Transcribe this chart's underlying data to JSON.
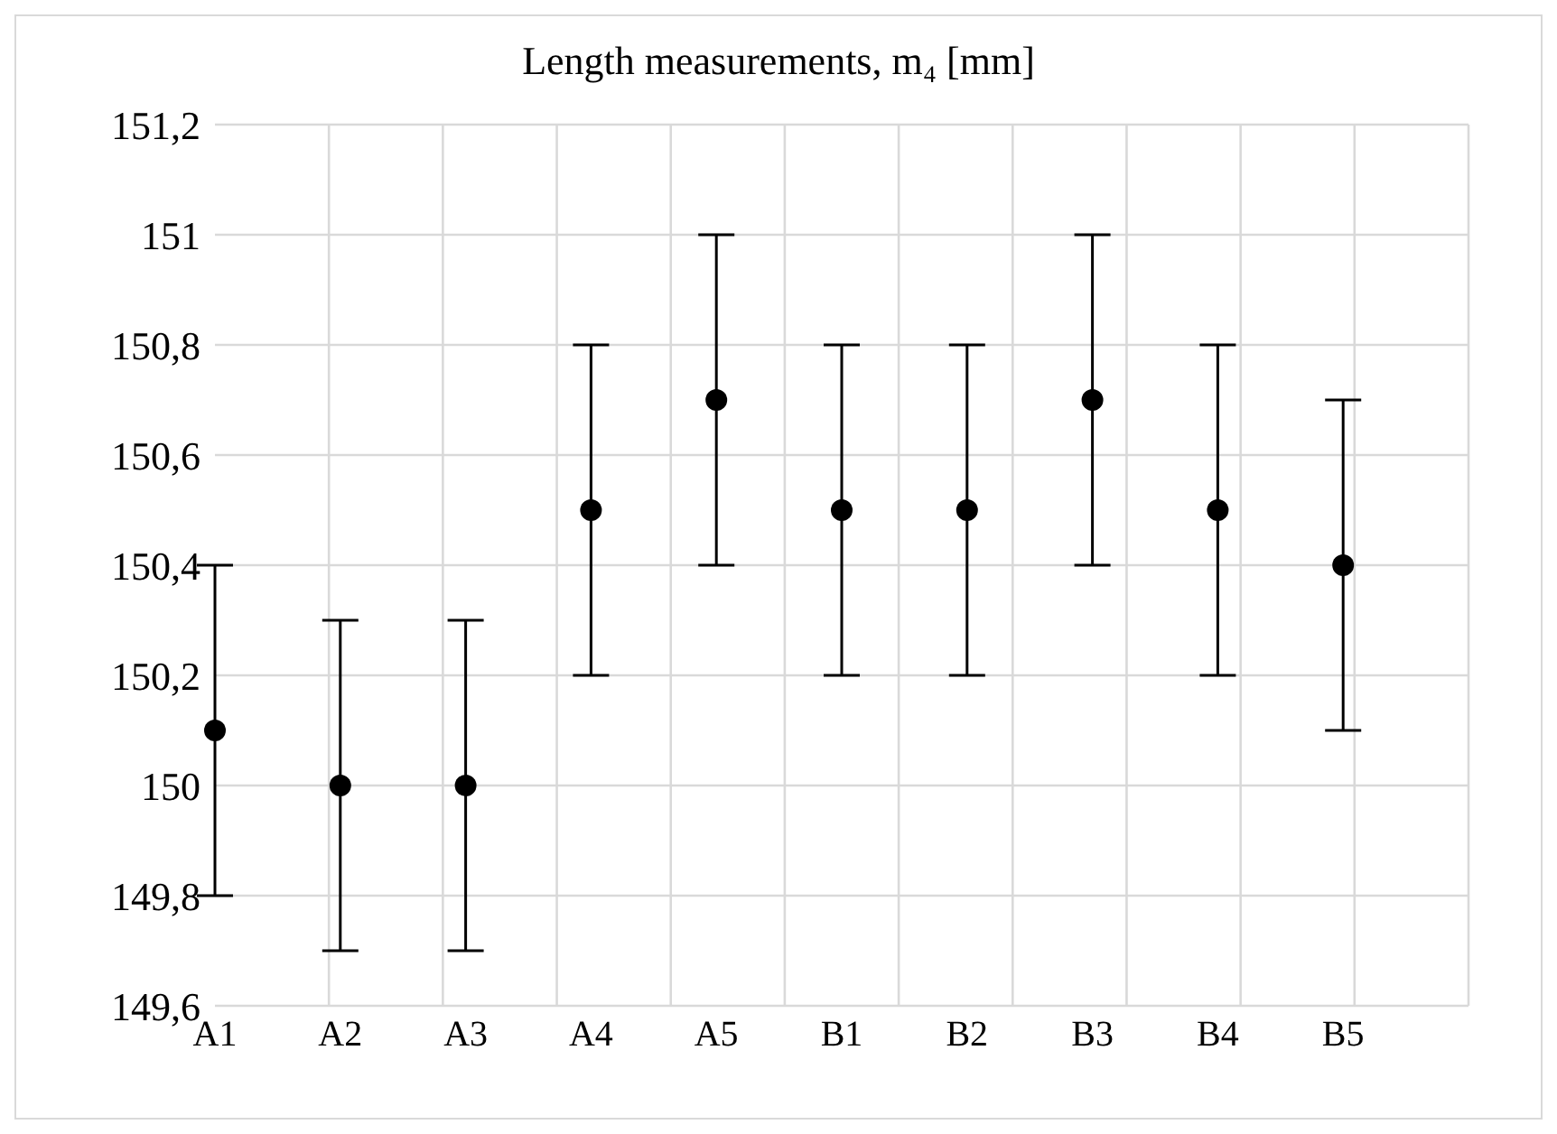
{
  "chart_data": {
    "type": "scatter",
    "title": "Length measurements, m₄ [mm]",
    "categories": [
      "A1",
      "A2",
      "A3",
      "A4",
      "A5",
      "B1",
      "B2",
      "B3",
      "B4",
      "B5",
      null
    ],
    "series": [
      {
        "color": "#000000",
        "values": [
          150.1,
          150.0,
          150.0,
          150.5,
          150.7,
          150.5,
          150.5,
          150.7,
          150.5,
          150.4,
          null
        ],
        "errors": [
          0.3,
          0.3,
          0.3,
          0.3,
          0.3,
          0.3,
          0.3,
          0.3,
          0.3,
          0.3,
          null
        ]
      }
    ],
    "ylim": [
      149.6,
      151.2
    ],
    "yticks": [
      {
        "value": 149.6,
        "label": "149,6"
      },
      {
        "value": 149.8,
        "label": "149,8"
      },
      150,
      {
        "value": 150.2,
        "label": "150,2"
      },
      {
        "value": 150.4,
        "label": "150,4"
      },
      {
        "value": 150.6,
        "label": "150,6"
      },
      {
        "value": 150.8,
        "label": "150,8"
      },
      151,
      {
        "value": 151.2,
        "label": "151,2"
      }
    ],
    "grid": true,
    "marker": "circle",
    "legend": false
  }
}
